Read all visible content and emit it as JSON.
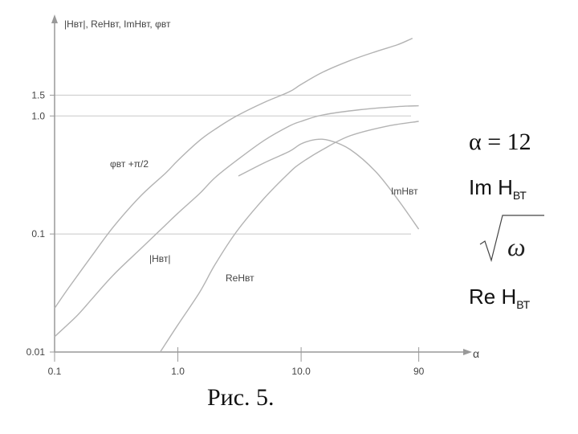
{
  "chart_data": {
    "type": "line",
    "y_axis_title": "|Hвт|, ReHвт, ImHвт, φвт",
    "x_axis_title": "α",
    "x_scale": "log",
    "y_scale": "log",
    "xlim": [
      0.1,
      160
    ],
    "ylim": [
      0.01,
      6
    ],
    "x_ticks": [
      {
        "value": 0.1,
        "label": "0.1"
      },
      {
        "value": 1.0,
        "label": "1.0"
      },
      {
        "value": 10.0,
        "label": "10.0"
      },
      {
        "value": 90,
        "label": "90"
      }
    ],
    "y_ticks": [
      {
        "value": 0.01,
        "label": "0.01"
      },
      {
        "value": 0.1,
        "label": "0.1"
      },
      {
        "value": 1.0,
        "label": "1.0"
      },
      {
        "value": 1.5,
        "label": "1.5"
      }
    ],
    "grid": "horizontal",
    "series": [
      {
        "name": "φвт +π/2",
        "points": [
          [
            0.1,
            0.0235
          ],
          [
            0.13,
            0.035
          ],
          [
            0.2,
            0.065
          ],
          [
            0.3,
            0.115
          ],
          [
            0.5,
            0.21
          ],
          [
            0.8,
            0.33
          ],
          [
            1.0,
            0.42
          ],
          [
            1.5,
            0.62
          ],
          [
            2.0,
            0.77
          ],
          [
            3.0,
            1.0
          ],
          [
            5.0,
            1.3
          ],
          [
            8.0,
            1.6
          ],
          [
            10.0,
            1.85
          ],
          [
            15.0,
            2.35
          ],
          [
            25.0,
            2.95
          ],
          [
            40.0,
            3.5
          ],
          [
            60.0,
            4.0
          ],
          [
            80.0,
            4.55
          ]
        ]
      },
      {
        "name": "|Hвт|",
        "points": [
          [
            0.1,
            0.0135
          ],
          [
            0.15,
            0.02
          ],
          [
            0.2,
            0.028
          ],
          [
            0.3,
            0.045
          ],
          [
            0.5,
            0.075
          ],
          [
            0.8,
            0.12
          ],
          [
            1.0,
            0.15
          ],
          [
            1.5,
            0.22
          ],
          [
            2.0,
            0.3
          ],
          [
            3.0,
            0.42
          ],
          [
            5.0,
            0.62
          ],
          [
            8.0,
            0.82
          ],
          [
            10.0,
            0.9
          ],
          [
            15.0,
            1.02
          ],
          [
            30.0,
            1.13
          ],
          [
            60.0,
            1.2
          ],
          [
            90.0,
            1.22
          ]
        ]
      },
      {
        "name": "ReHвт",
        "points": [
          [
            0.72,
            0.01
          ],
          [
            1.0,
            0.017
          ],
          [
            1.5,
            0.032
          ],
          [
            2.0,
            0.055
          ],
          [
            3.0,
            0.105
          ],
          [
            5.0,
            0.2
          ],
          [
            8.0,
            0.33
          ],
          [
            10.0,
            0.4
          ],
          [
            15.0,
            0.52
          ],
          [
            25.0,
            0.68
          ],
          [
            50.0,
            0.82
          ],
          [
            90.0,
            0.9
          ]
        ]
      },
      {
        "name": "ImHвт",
        "points": [
          [
            3.1,
            0.31
          ],
          [
            5.0,
            0.4
          ],
          [
            8.0,
            0.5
          ],
          [
            10.0,
            0.58
          ],
          [
            13.0,
            0.63
          ],
          [
            17.0,
            0.62
          ],
          [
            25.0,
            0.52
          ],
          [
            40.0,
            0.34
          ],
          [
            60.0,
            0.2
          ],
          [
            90.0,
            0.11
          ]
        ]
      }
    ]
  },
  "annotations": {
    "alpha_value": "α = 12",
    "im_label": "Im H",
    "im_sub": "ВТ",
    "sqrt_symbol": "ω",
    "re_label": "Re H",
    "re_sub": "ВТ"
  },
  "caption": "Рис. 5."
}
